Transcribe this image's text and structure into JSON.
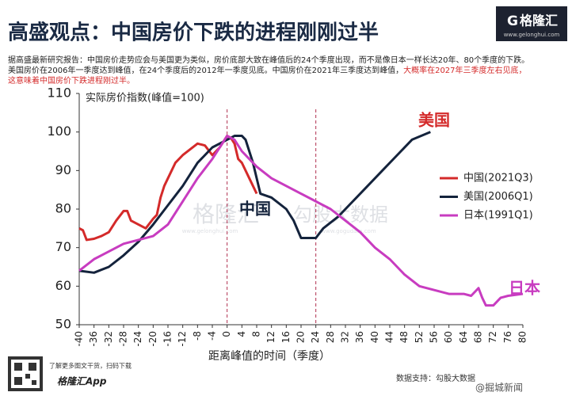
{
  "header": {
    "title": "高盛观点：中国房价下跌的进程刚刚过半",
    "logo": "格隆汇",
    "logo_url": "www.gelonghui.com",
    "notes": [
      "据高盛最新研究报告：中国房价走势应会与美国更为类似，房价底部大致在峰值后的24个季度出现，而不是像日本一样长达20年、80个季度的下跌。",
      "美国房价在2006年一季度达到峰值，在24个季度后的2012年一季度见底。中国房价在2021年三季度达到峰值，",
      "大概率在2027年三季度左右见底，",
      "这意味着中国房价下跌进程刚过半。"
    ]
  },
  "chart_data": {
    "type": "line",
    "y_label": "实际房价指数(峰值=100)",
    "x_label": "距离峰值的时间（季度）",
    "xlim": [
      -40,
      80
    ],
    "xticks": [
      -40,
      -36,
      -32,
      -28,
      -24,
      -20,
      -16,
      -12,
      -8,
      -4,
      0,
      4,
      8,
      12,
      16,
      20,
      24,
      28,
      32,
      36,
      40,
      44,
      48,
      52,
      56,
      60,
      64,
      68,
      72,
      76,
      80
    ],
    "ylim": [
      50,
      110
    ],
    "yticks": [
      50,
      60,
      70,
      80,
      90,
      100,
      110
    ],
    "reference_lines": [
      0,
      24
    ],
    "series": [
      {
        "name": "中国(2021Q3)",
        "color": "#d42a2a",
        "x": [
          -40,
          -39,
          -38,
          -36,
          -34,
          -32,
          -30,
          -28,
          -27,
          -26,
          -24,
          -22,
          -20,
          -19,
          -18,
          -17,
          -16,
          -14,
          -12,
          -10,
          -8,
          -6,
          -4,
          -2,
          0,
          1,
          2,
          3,
          4,
          6,
          8
        ],
        "values": [
          75,
          74.5,
          72,
          72.3,
          73,
          74,
          77,
          79.5,
          79.5,
          77,
          76,
          75,
          77.5,
          78.5,
          83,
          86,
          88,
          92,
          94,
          95.5,
          97,
          96.5,
          94,
          96,
          99,
          98.5,
          97,
          93,
          92,
          88,
          84
        ]
      },
      {
        "name": "美国(2006Q1)",
        "color": "#14233c",
        "x": [
          -40,
          -36,
          -32,
          -28,
          -24,
          -20,
          -16,
          -12,
          -8,
          -4,
          0,
          2,
          4,
          5,
          6,
          7,
          8,
          9,
          12,
          16,
          18,
          20,
          22,
          24,
          26,
          30,
          34,
          38,
          42,
          46,
          50,
          55
        ],
        "values": [
          64,
          63.5,
          65,
          68,
          71.5,
          76,
          81,
          86,
          92,
          96,
          98,
          99,
          99,
          98,
          95,
          92,
          88,
          84,
          83,
          80,
          77,
          72.5,
          72.5,
          72.5,
          75,
          78,
          82,
          86,
          90,
          94,
          98,
          100
        ]
      },
      {
        "name": "日本(1991Q1)",
        "color": "#c83cc0",
        "x": [
          -40,
          -36,
          -32,
          -28,
          -24,
          -20,
          -16,
          -12,
          -8,
          -4,
          -2,
          0,
          2,
          4,
          8,
          12,
          16,
          20,
          24,
          28,
          32,
          36,
          40,
          44,
          48,
          52,
          56,
          60,
          64,
          66,
          68,
          69,
          70,
          72,
          74,
          76,
          80
        ],
        "values": [
          64,
          67,
          69,
          71,
          72,
          73,
          76,
          82,
          88,
          93,
          96,
          99,
          98,
          95,
          91,
          88,
          86,
          84,
          82,
          80,
          77,
          74,
          70,
          67,
          63,
          60,
          59,
          58,
          58,
          57.5,
          59.5,
          57,
          55,
          55,
          57,
          57.5,
          58
        ]
      }
    ],
    "annotations": [
      "美国",
      "中国",
      "日本"
    ],
    "watermarks": [
      "格隆汇",
      "www.gelonghui.com",
      "勾股大数据",
      "www.gogudata.com"
    ]
  },
  "footer": {
    "qr_caption": "了解更多图文干货，扫码下载",
    "app": "格隆汇App",
    "source": "数据支持：勾股大数据",
    "weibo": "@掘城新闻"
  }
}
